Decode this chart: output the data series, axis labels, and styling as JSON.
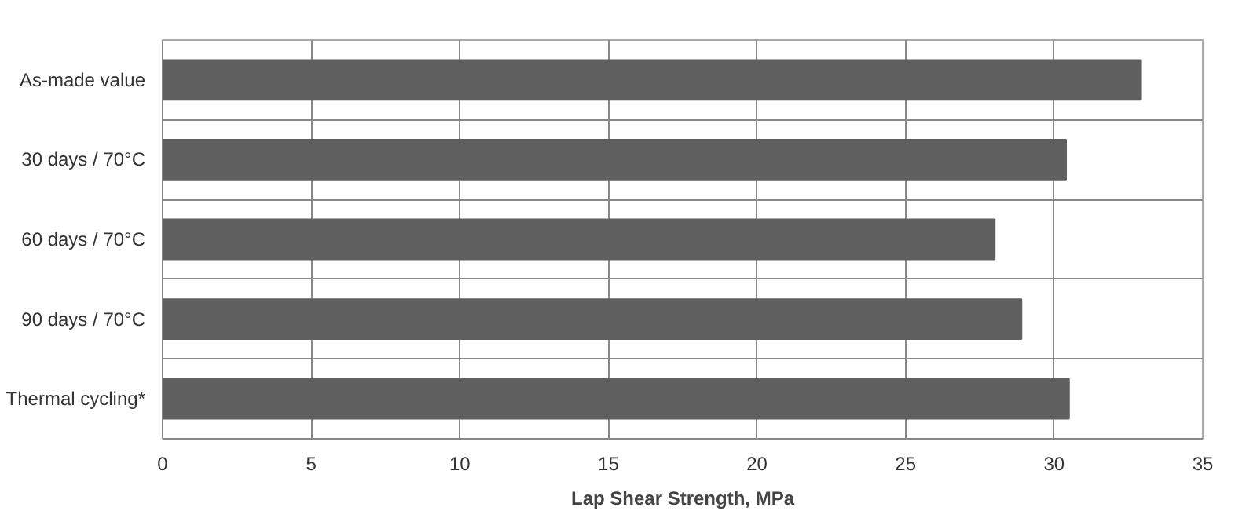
{
  "chart_data": {
    "type": "bar",
    "orientation": "horizontal",
    "xlabel": "Lap Shear Strength, MPa",
    "categories": [
      "As-made value",
      "30 days / 70°C",
      "60 days / 70°C",
      "90 days / 70°C",
      "Thermal cycling*"
    ],
    "values": [
      32.9,
      30.4,
      28.0,
      28.9,
      30.5
    ],
    "color": "#5f5f5f",
    "xlim": [
      0,
      35
    ],
    "xticks": [
      0,
      5,
      10,
      15,
      20,
      25,
      30,
      35
    ],
    "grid": true
  }
}
